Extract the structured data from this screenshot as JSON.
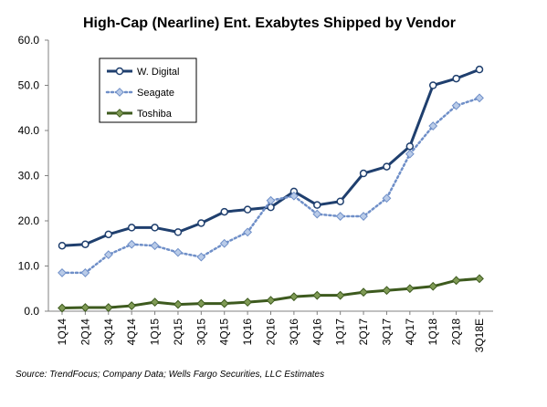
{
  "chart_data": {
    "type": "line",
    "title": "High-Cap (Nearline) Ent. Exabytes Shipped by Vendor",
    "xlabel": "",
    "ylabel": "",
    "ylim": [
      0,
      60
    ],
    "yticks": [
      "0.0",
      "10.0",
      "20.0",
      "30.0",
      "40.0",
      "50.0",
      "60.0"
    ],
    "categories": [
      "1Q14",
      "2Q14",
      "3Q14",
      "4Q14",
      "1Q15",
      "2Q15",
      "3Q15",
      "4Q15",
      "1Q16",
      "2Q16",
      "3Q16",
      "4Q16",
      "1Q17",
      "2Q17",
      "3Q17",
      "4Q17",
      "1Q18",
      "2Q18",
      "3Q18E"
    ],
    "series": [
      {
        "name": "W. Digital",
        "color": "#1f3f6e",
        "style": "solid",
        "marker": "circle",
        "values": [
          14.5,
          14.8,
          17.0,
          18.5,
          18.5,
          17.5,
          19.5,
          22.0,
          22.5,
          23.0,
          26.5,
          23.5,
          24.3,
          30.5,
          32.0,
          36.5,
          50.0,
          51.5,
          53.5
        ]
      },
      {
        "name": "Seagate",
        "color": "#6f8fc8",
        "style": "dotted",
        "marker": "diamond",
        "values": [
          8.5,
          8.5,
          12.5,
          14.8,
          14.5,
          13.0,
          12.0,
          15.0,
          17.5,
          24.5,
          25.5,
          21.5,
          21.0,
          21.0,
          25.0,
          34.8,
          41.0,
          45.5,
          47.2
        ]
      },
      {
        "name": "Toshiba",
        "color": "#3d5a1e",
        "style": "solid",
        "marker": "diamond",
        "values": [
          0.7,
          0.8,
          0.8,
          1.2,
          2.0,
          1.5,
          1.7,
          1.7,
          2.0,
          2.4,
          3.2,
          3.5,
          3.5,
          4.2,
          4.6,
          5.0,
          5.5,
          6.8,
          7.2
        ]
      }
    ],
    "legend_position": "top-left",
    "grid": false,
    "source": "Source:  TrendFocus; Company Data; Wells Fargo Securities, LLC Estimates"
  }
}
